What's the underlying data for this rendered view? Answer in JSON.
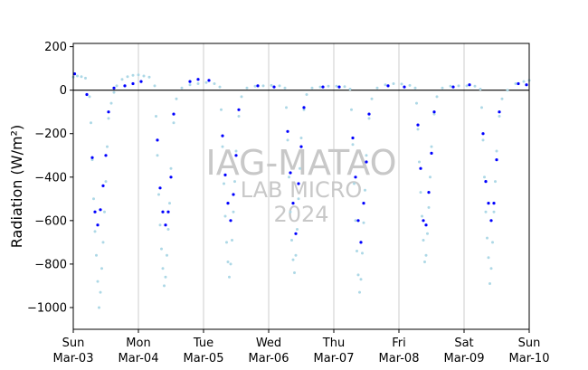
{
  "chart_data": {
    "type": "scatter",
    "ylabel": "Radiation (W/m²)",
    "ylim": [
      -1100,
      215
    ],
    "yticks": [
      200,
      0,
      -200,
      -400,
      -600,
      -800,
      -1000
    ],
    "xlim": [
      "2024-03-03",
      "2024-03-10"
    ],
    "xticks": [
      {
        "date": "2024-03-03",
        "day": "Sun",
        "label": "Mar-03"
      },
      {
        "date": "2024-03-04",
        "day": "Mon",
        "label": "Mar-04"
      },
      {
        "date": "2024-03-05",
        "day": "Tue",
        "label": "Mar-05"
      },
      {
        "date": "2024-03-06",
        "day": "Wed",
        "label": "Mar-06"
      },
      {
        "date": "2024-03-07",
        "day": "Thu",
        "label": "Mar-07"
      },
      {
        "date": "2024-03-08",
        "day": "Fri",
        "label": "Mar-08"
      },
      {
        "date": "2024-03-09",
        "day": "Sat",
        "label": "Mar-09"
      },
      {
        "date": "2024-03-10",
        "day": "Sun",
        "label": "Mar-10"
      }
    ],
    "grid": "vertical-major",
    "zero_line": true,
    "colors": {
      "series_a": "#add8e6",
      "series_b": "#0000ff",
      "axis": "#000000",
      "grid": "#cccccc",
      "watermark": "#c8c8c8"
    },
    "series": [
      {
        "color": "#add8e6",
        "points": [
          [
            "2024-03-03 00:00",
            60
          ],
          [
            "2024-03-03 01:30",
            65
          ],
          [
            "2024-03-03 03:00",
            62
          ],
          [
            "2024-03-03 04:30",
            55
          ],
          [
            "2024-03-03 06:00",
            -30
          ],
          [
            "2024-03-03 06:30",
            -150
          ],
          [
            "2024-03-03 07:00",
            -320
          ],
          [
            "2024-03-03 07:30",
            -500
          ],
          [
            "2024-03-03 08:00",
            -650
          ],
          [
            "2024-03-03 08:30",
            -760
          ],
          [
            "2024-03-03 09:00",
            -880
          ],
          [
            "2024-03-03 09:30",
            -1000
          ],
          [
            "2024-03-03 10:00",
            -930
          ],
          [
            "2024-03-03 10:30",
            -820
          ],
          [
            "2024-03-03 11:00",
            -700
          ],
          [
            "2024-03-03 11:30",
            -560
          ],
          [
            "2024-03-03 12:00",
            -420
          ],
          [
            "2024-03-03 12:30",
            -260
          ],
          [
            "2024-03-03 13:00",
            -130
          ],
          [
            "2024-03-03 14:00",
            -60
          ],
          [
            "2024-03-03 15:00",
            -10
          ],
          [
            "2024-03-03 16:00",
            20
          ],
          [
            "2024-03-03 18:00",
            50
          ],
          [
            "2024-03-03 20:00",
            62
          ],
          [
            "2024-03-03 22:00",
            68
          ],
          [
            "2024-03-04 00:00",
            70
          ],
          [
            "2024-03-04 02:00",
            65
          ],
          [
            "2024-03-04 04:00",
            60
          ],
          [
            "2024-03-04 06:00",
            20
          ],
          [
            "2024-03-04 06:30",
            -120
          ],
          [
            "2024-03-04 07:00",
            -300
          ],
          [
            "2024-03-04 07:30",
            -480
          ],
          [
            "2024-03-04 08:00",
            -620
          ],
          [
            "2024-03-04 08:30",
            -730
          ],
          [
            "2024-03-04 09:00",
            -820
          ],
          [
            "2024-03-04 09:30",
            -900
          ],
          [
            "2024-03-04 10:00",
            -860
          ],
          [
            "2024-03-04 10:30",
            -760
          ],
          [
            "2024-03-04 11:00",
            -640
          ],
          [
            "2024-03-04 11:30",
            -520
          ],
          [
            "2024-03-04 12:00",
            -360
          ],
          [
            "2024-03-04 13:00",
            -150
          ],
          [
            "2024-03-04 14:00",
            -40
          ],
          [
            "2024-03-04 16:00",
            10
          ],
          [
            "2024-03-04 19:00",
            25
          ],
          [
            "2024-03-04 22:00",
            30
          ],
          [
            "2024-03-05 01:00",
            35
          ],
          [
            "2024-03-05 04:00",
            30
          ],
          [
            "2024-03-05 06:00",
            15
          ],
          [
            "2024-03-05 06:30",
            -90
          ],
          [
            "2024-03-05 07:00",
            -260
          ],
          [
            "2024-03-05 07:30",
            -430
          ],
          [
            "2024-03-05 08:00",
            -580
          ],
          [
            "2024-03-05 08:30",
            -700
          ],
          [
            "2024-03-05 09:00",
            -790
          ],
          [
            "2024-03-05 09:30",
            -860
          ],
          [
            "2024-03-05 10:00",
            -800
          ],
          [
            "2024-03-05 10:30",
            -690
          ],
          [
            "2024-03-05 11:00",
            -560
          ],
          [
            "2024-03-05 11:30",
            -420
          ],
          [
            "2024-03-05 12:00",
            -280
          ],
          [
            "2024-03-05 13:00",
            -120
          ],
          [
            "2024-03-05 14:00",
            -30
          ],
          [
            "2024-03-05 16:00",
            10
          ],
          [
            "2024-03-05 19:00",
            18
          ],
          [
            "2024-03-05 22:00",
            20
          ],
          [
            "2024-03-06 01:00",
            22
          ],
          [
            "2024-03-06 04:00",
            20
          ],
          [
            "2024-03-06 06:00",
            10
          ],
          [
            "2024-03-06 06:30",
            -80
          ],
          [
            "2024-03-06 07:00",
            -230
          ],
          [
            "2024-03-06 07:30",
            -400
          ],
          [
            "2024-03-06 08:00",
            -560
          ],
          [
            "2024-03-06 08:30",
            -690
          ],
          [
            "2024-03-06 09:00",
            -780
          ],
          [
            "2024-03-06 09:30",
            -840
          ],
          [
            "2024-03-06 10:00",
            -760
          ],
          [
            "2024-03-06 10:30",
            -640
          ],
          [
            "2024-03-06 11:00",
            -500
          ],
          [
            "2024-03-06 11:30",
            -360
          ],
          [
            "2024-03-06 12:00",
            -220
          ],
          [
            "2024-03-06 13:00",
            -90
          ],
          [
            "2024-03-06 14:00",
            -20
          ],
          [
            "2024-03-06 16:00",
            10
          ],
          [
            "2024-03-06 19:00",
            15
          ],
          [
            "2024-03-06 22:00",
            18
          ],
          [
            "2024-03-07 01:00",
            18
          ],
          [
            "2024-03-07 04:00",
            16
          ],
          [
            "2024-03-07 06:00",
            5
          ],
          [
            "2024-03-07 06:30",
            -90
          ],
          [
            "2024-03-07 07:00",
            -250
          ],
          [
            "2024-03-07 07:30",
            -430
          ],
          [
            "2024-03-07 08:00",
            -600
          ],
          [
            "2024-03-07 08:30",
            -740
          ],
          [
            "2024-03-07 09:00",
            -850
          ],
          [
            "2024-03-07 09:30",
            -930
          ],
          [
            "2024-03-07 10:00",
            -870
          ],
          [
            "2024-03-07 10:30",
            -750
          ],
          [
            "2024-03-07 11:00",
            -610
          ],
          [
            "2024-03-07 11:30",
            -460
          ],
          [
            "2024-03-07 12:00",
            -300
          ],
          [
            "2024-03-07 13:00",
            -130
          ],
          [
            "2024-03-07 14:00",
            -40
          ],
          [
            "2024-03-07 16:00",
            10
          ],
          [
            "2024-03-07 19:00",
            25
          ],
          [
            "2024-03-07 22:00",
            30
          ],
          [
            "2024-03-08 01:00",
            28
          ],
          [
            "2024-03-08 04:00",
            22
          ],
          [
            "2024-03-08 06:00",
            10
          ],
          [
            "2024-03-08 06:30",
            -60
          ],
          [
            "2024-03-08 07:00",
            -180
          ],
          [
            "2024-03-08 07:30",
            -330
          ],
          [
            "2024-03-08 08:00",
            -470
          ],
          [
            "2024-03-08 08:30",
            -580
          ],
          [
            "2024-03-08 09:00",
            -690
          ],
          [
            "2024-03-08 09:30",
            -790
          ],
          [
            "2024-03-08 10:00",
            -760
          ],
          [
            "2024-03-08 10:30",
            -660
          ],
          [
            "2024-03-08 11:00",
            -540
          ],
          [
            "2024-03-08 11:30",
            -400
          ],
          [
            "2024-03-08 12:00",
            -260
          ],
          [
            "2024-03-08 13:00",
            -110
          ],
          [
            "2024-03-08 14:00",
            -30
          ],
          [
            "2024-03-08 16:00",
            10
          ],
          [
            "2024-03-08 19:00",
            18
          ],
          [
            "2024-03-08 22:00",
            20
          ],
          [
            "2024-03-09 01:00",
            20
          ],
          [
            "2024-03-09 04:00",
            18
          ],
          [
            "2024-03-09 06:00",
            5
          ],
          [
            "2024-03-09 06:30",
            -80
          ],
          [
            "2024-03-09 07:00",
            -230
          ],
          [
            "2024-03-09 07:30",
            -400
          ],
          [
            "2024-03-09 08:00",
            -560
          ],
          [
            "2024-03-09 08:30",
            -680
          ],
          [
            "2024-03-09 09:00",
            -770
          ],
          [
            "2024-03-09 09:30",
            -890
          ],
          [
            "2024-03-09 10:00",
            -820
          ],
          [
            "2024-03-09 10:30",
            -700
          ],
          [
            "2024-03-09 11:00",
            -560
          ],
          [
            "2024-03-09 11:30",
            -420
          ],
          [
            "2024-03-09 12:00",
            -280
          ],
          [
            "2024-03-09 13:00",
            -120
          ],
          [
            "2024-03-09 14:00",
            -40
          ],
          [
            "2024-03-09 16:00",
            0
          ],
          [
            "2024-03-09 19:00",
            30
          ],
          [
            "2024-03-09 22:00",
            40
          ],
          [
            "2024-03-10 00:00",
            45
          ]
        ]
      },
      {
        "color": "#0000ff",
        "points": [
          [
            "2024-03-03 00:30",
            75
          ],
          [
            "2024-03-03 05:00",
            -20
          ],
          [
            "2024-03-03 07:00",
            -310
          ],
          [
            "2024-03-03 08:00",
            -560
          ],
          [
            "2024-03-03 09:00",
            -620
          ],
          [
            "2024-03-03 10:00",
            -550
          ],
          [
            "2024-03-03 11:00",
            -440
          ],
          [
            "2024-03-03 12:00",
            -300
          ],
          [
            "2024-03-03 13:00",
            -100
          ],
          [
            "2024-03-03 15:00",
            10
          ],
          [
            "2024-03-03 19:00",
            20
          ],
          [
            "2024-03-03 22:00",
            30
          ],
          [
            "2024-03-04 01:00",
            40
          ],
          [
            "2024-03-04 07:00",
            -230
          ],
          [
            "2024-03-04 08:00",
            -450
          ],
          [
            "2024-03-04 09:00",
            -560
          ],
          [
            "2024-03-04 10:00",
            -620
          ],
          [
            "2024-03-04 11:00",
            -560
          ],
          [
            "2024-03-04 12:00",
            -400
          ],
          [
            "2024-03-04 13:00",
            -110
          ],
          [
            "2024-03-04 19:00",
            40
          ],
          [
            "2024-03-04 22:00",
            50
          ],
          [
            "2024-03-05 02:00",
            45
          ],
          [
            "2024-03-05 07:00",
            -210
          ],
          [
            "2024-03-05 08:00",
            -390
          ],
          [
            "2024-03-05 09:00",
            -520
          ],
          [
            "2024-03-05 10:00",
            -600
          ],
          [
            "2024-03-05 11:00",
            -480
          ],
          [
            "2024-03-05 12:00",
            -300
          ],
          [
            "2024-03-05 13:00",
            -90
          ],
          [
            "2024-03-05 20:00",
            20
          ],
          [
            "2024-03-06 02:00",
            15
          ],
          [
            "2024-03-06 07:00",
            -190
          ],
          [
            "2024-03-06 08:00",
            -380
          ],
          [
            "2024-03-06 09:00",
            -520
          ],
          [
            "2024-03-06 10:00",
            -660
          ],
          [
            "2024-03-06 11:00",
            -430
          ],
          [
            "2024-03-06 12:00",
            -260
          ],
          [
            "2024-03-06 13:00",
            -80
          ],
          [
            "2024-03-06 20:00",
            15
          ],
          [
            "2024-03-07 02:00",
            15
          ],
          [
            "2024-03-07 07:00",
            -220
          ],
          [
            "2024-03-07 08:00",
            -400
          ],
          [
            "2024-03-07 09:00",
            -600
          ],
          [
            "2024-03-07 10:00",
            -700
          ],
          [
            "2024-03-07 11:00",
            -520
          ],
          [
            "2024-03-07 12:00",
            -330
          ],
          [
            "2024-03-07 13:00",
            -110
          ],
          [
            "2024-03-07 20:00",
            20
          ],
          [
            "2024-03-08 02:00",
            15
          ],
          [
            "2024-03-08 07:00",
            -160
          ],
          [
            "2024-03-08 08:00",
            -360
          ],
          [
            "2024-03-08 09:00",
            -600
          ],
          [
            "2024-03-08 10:00",
            -620
          ],
          [
            "2024-03-08 11:00",
            -470
          ],
          [
            "2024-03-08 12:00",
            -290
          ],
          [
            "2024-03-08 13:00",
            -100
          ],
          [
            "2024-03-08 20:00",
            15
          ],
          [
            "2024-03-09 02:00",
            25
          ],
          [
            "2024-03-09 07:00",
            -200
          ],
          [
            "2024-03-09 08:00",
            -420
          ],
          [
            "2024-03-09 09:00",
            -520
          ],
          [
            "2024-03-09 10:00",
            -600
          ],
          [
            "2024-03-09 11:00",
            -520
          ],
          [
            "2024-03-09 12:00",
            -320
          ],
          [
            "2024-03-09 13:00",
            -100
          ],
          [
            "2024-03-09 20:00",
            30
          ],
          [
            "2024-03-09 23:00",
            25
          ]
        ]
      }
    ],
    "watermark": [
      "IAG-MATAO",
      "LAB MICRO",
      "2024"
    ]
  }
}
